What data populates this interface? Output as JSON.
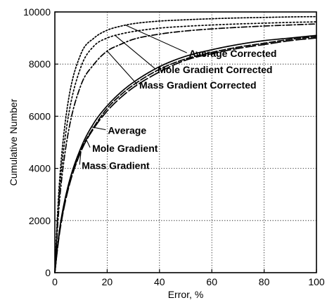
{
  "chart_data": {
    "type": "line",
    "xlabel": "Error, %",
    "ylabel": "Cumulative Number",
    "xlim": [
      0,
      100
    ],
    "ylim": [
      0,
      10000
    ],
    "x_ticks": [
      0,
      20,
      40,
      60,
      80,
      100
    ],
    "y_ticks": [
      0,
      2000,
      4000,
      6000,
      8000,
      10000
    ],
    "grid": true,
    "x": [
      0,
      1,
      2,
      5,
      10,
      15,
      20,
      25,
      30,
      40,
      50,
      60,
      70,
      80,
      90,
      100
    ],
    "series": [
      {
        "name": "Average Corrected",
        "dash": "2 2.5",
        "values": [
          0,
          2200,
          3800,
          6500,
          8400,
          9000,
          9300,
          9450,
          9550,
          9650,
          9700,
          9740,
          9770,
          9790,
          9810,
          9820
        ]
      },
      {
        "name": "Mole Gradient Corrected",
        "dash": "2 3",
        "values": [
          0,
          2000,
          3400,
          5900,
          7900,
          8700,
          9000,
          9150,
          9250,
          9380,
          9450,
          9500,
          9540,
          9570,
          9600,
          9620
        ]
      },
      {
        "name": "Mass Gradient Corrected",
        "dash": "8 3 2 3",
        "values": [
          0,
          1700,
          3000,
          5300,
          7200,
          8000,
          8500,
          8750,
          8950,
          9150,
          9270,
          9350,
          9410,
          9460,
          9500,
          9540
        ]
      },
      {
        "name": "Average",
        "dash": "",
        "values": [
          0,
          1000,
          1800,
          3300,
          4800,
          5750,
          6400,
          6900,
          7300,
          7900,
          8300,
          8550,
          8750,
          8900,
          9000,
          9100
        ]
      },
      {
        "name": "Mole Gradient",
        "dash": "9 3",
        "values": [
          0,
          950,
          1700,
          3200,
          4700,
          5600,
          6300,
          6800,
          7200,
          7800,
          8200,
          8450,
          8650,
          8800,
          8950,
          9050
        ]
      },
      {
        "name": "Mass Gradient",
        "dash": "14 4",
        "values": [
          0,
          900,
          1650,
          3150,
          4650,
          5550,
          6200,
          6700,
          7100,
          7700,
          8150,
          8400,
          8600,
          8750,
          8900,
          9000
        ]
      }
    ],
    "annotations": [
      {
        "text": "Average Corrected",
        "series": 0,
        "at_x": 27,
        "label_x": 51,
        "label_y": 8270
      },
      {
        "text": "Mole Gradient Corrected",
        "series": 1,
        "at_x": 23,
        "label_x": 39,
        "label_y": 7650
      },
      {
        "text": "Mass Gradient Corrected",
        "series": 2,
        "at_x": 20,
        "label_x": 32,
        "label_y": 7060
      },
      {
        "text": "Average",
        "series": 3,
        "at_x": 14,
        "label_x": 20,
        "label_y": 5320
      },
      {
        "text": "Mole Gradient",
        "series": 4,
        "at_x": 12,
        "label_x": 14,
        "label_y": 4640
      },
      {
        "text": "Mass Gradient",
        "series": 5,
        "at_x": 10,
        "label_x": 10,
        "label_y": 3980
      }
    ]
  }
}
